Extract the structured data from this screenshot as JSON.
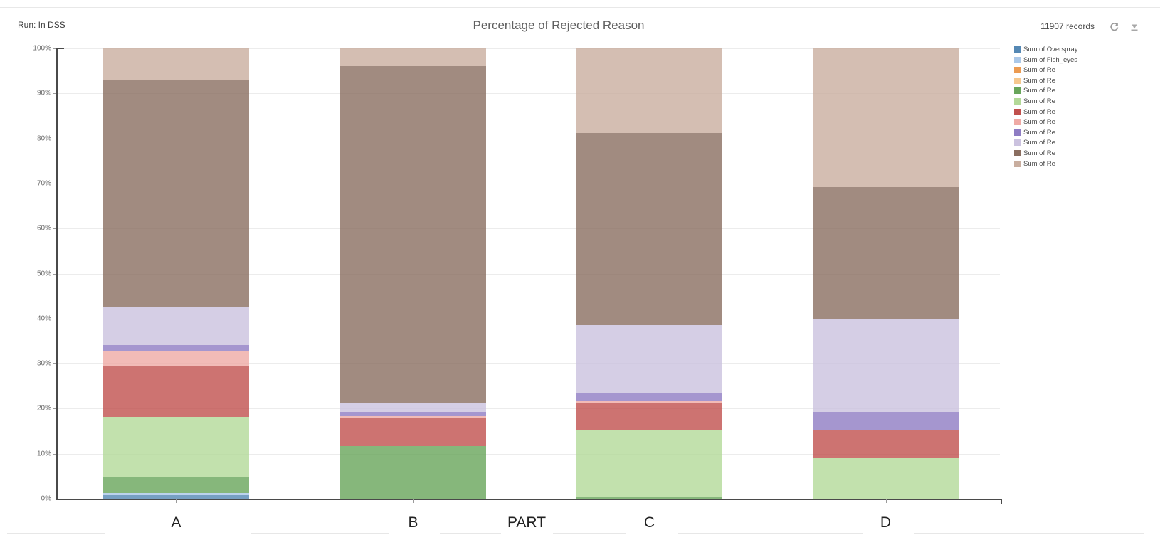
{
  "header": {
    "run_label": "Run: In DSS",
    "title": "Percentage of Rejected Reason",
    "records": "11907 records",
    "refresh_icon": "refresh-circular-arrow",
    "download_icon": "download-arrow-tray"
  },
  "chart_data": {
    "type": "bar",
    "stacked": true,
    "units": "percent",
    "title": "Percentage of Rejected Reason",
    "xlabel": "PART",
    "ylabel": "",
    "ylim": [
      0,
      100
    ],
    "grid": true,
    "legend_position": "right",
    "categories": [
      "A",
      "B",
      "C",
      "D"
    ],
    "y_ticks": [
      "0%",
      "10%",
      "20%",
      "30%",
      "40%",
      "50%",
      "60%",
      "70%",
      "80%",
      "90%",
      "100%"
    ],
    "series": [
      {
        "name": "Sum of Overspray",
        "color": "#5588b4",
        "values": [
          0.8,
          0,
          0,
          0
        ]
      },
      {
        "name": "Sum of Fish_eyes",
        "color": "#abc8e8",
        "values": [
          0.5,
          0,
          0,
          0
        ]
      },
      {
        "name": "Sum of Re",
        "color": "#ec9b51",
        "values": [
          0,
          0,
          0,
          0
        ]
      },
      {
        "name": "Sum of Re",
        "color": "#f6c88f",
        "values": [
          0,
          0,
          0,
          0
        ]
      },
      {
        "name": "Sum of Re",
        "color": "#68a55a",
        "values": [
          3.6,
          11.7,
          0.4,
          0
        ]
      },
      {
        "name": "Sum of Re",
        "color": "#b3d998",
        "values": [
          13.3,
          0,
          14.8,
          9.0
        ]
      },
      {
        "name": "Sum of Re",
        "color": "#c0504d",
        "values": [
          11.4,
          6.2,
          6.2,
          6.4
        ]
      },
      {
        "name": "Sum of Re",
        "color": "#efaaa5",
        "values": [
          3.1,
          0.4,
          0.3,
          0
        ]
      },
      {
        "name": "Sum of Re",
        "color": "#8e7cc3",
        "values": [
          1.4,
          0.9,
          1.8,
          3.8
        ]
      },
      {
        "name": "Sum of Re",
        "color": "#cbc2df",
        "values": [
          8.5,
          1.9,
          15.0,
          20.6
        ]
      },
      {
        "name": "Sum of Re",
        "color": "#8a6e60",
        "values": [
          50.3,
          75.0,
          42.7,
          29.4
        ]
      },
      {
        "name": "Sum of Re",
        "color": "#c9ae9f",
        "values": [
          7.1,
          3.9,
          18.8,
          30.8
        ]
      }
    ]
  }
}
